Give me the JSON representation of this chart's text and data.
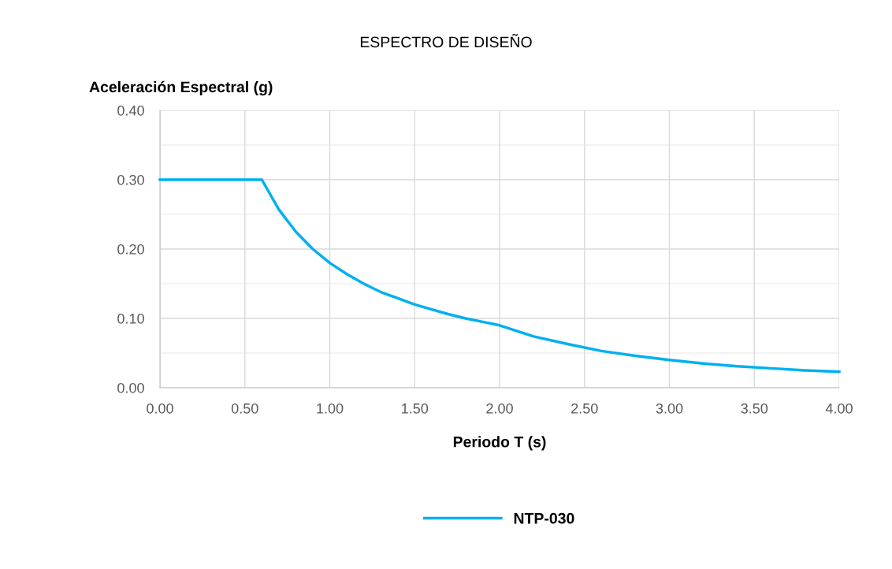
{
  "chart_data": {
    "type": "line",
    "title": "ESPECTRO DE DISEÑO",
    "xlabel": "Periodo T (s)",
    "ylabel": "Aceleración Espectral (g)",
    "x": [
      0,
      0.1,
      0.2,
      0.3,
      0.4,
      0.5,
      0.6,
      0.7,
      0.8,
      0.9,
      1.0,
      1.1,
      1.2,
      1.3,
      1.4,
      1.5,
      1.6,
      1.7,
      1.8,
      1.9,
      2.0,
      2.2,
      2.4,
      2.6,
      2.8,
      3.0,
      3.2,
      3.4,
      3.6,
      3.8,
      4.0
    ],
    "series": [
      {
        "name": "NTP-030",
        "color": "#00b0f0",
        "values": [
          0.3,
          0.3,
          0.3,
          0.3,
          0.3,
          0.3,
          0.3,
          0.257,
          0.225,
          0.2,
          0.18,
          0.164,
          0.15,
          0.138,
          0.129,
          0.12,
          0.113,
          0.106,
          0.1,
          0.095,
          0.09,
          0.074,
          0.063,
          0.053,
          0.046,
          0.04,
          0.035,
          0.031,
          0.028,
          0.025,
          0.023
        ]
      }
    ],
    "xlim": [
      0,
      4
    ],
    "ylim": [
      0,
      0.4
    ],
    "xticks": [
      {
        "value": 0,
        "label": "0.00"
      },
      {
        "value": 0.5,
        "label": "0.50"
      },
      {
        "value": 1,
        "label": "1.00"
      },
      {
        "value": 1.5,
        "label": "1.50"
      },
      {
        "value": 2,
        "label": "2.00"
      },
      {
        "value": 2.5,
        "label": "2.50"
      },
      {
        "value": 3,
        "label": "3.00"
      },
      {
        "value": 3.5,
        "label": "3.50"
      },
      {
        "value": 4,
        "label": "4.00"
      }
    ],
    "yticks": [
      {
        "value": 0,
        "label": "0.00"
      },
      {
        "value": 0.05,
        "label": null
      },
      {
        "value": 0.1,
        "label": "0.10"
      },
      {
        "value": 0.15,
        "label": null
      },
      {
        "value": 0.2,
        "label": "0.20"
      },
      {
        "value": 0.25,
        "label": null
      },
      {
        "value": 0.3,
        "label": "0.30"
      },
      {
        "value": 0.35,
        "label": null
      },
      {
        "value": 0.4,
        "label": "0.40"
      }
    ],
    "grid": true,
    "legend": "bottom",
    "marker": "none",
    "line_style": "solid"
  }
}
